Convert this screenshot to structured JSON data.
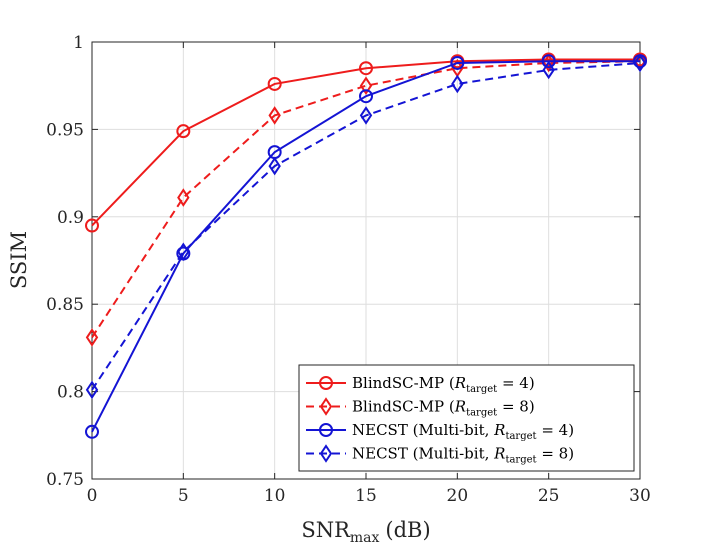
{
  "chart_data": {
    "type": "line",
    "title": "",
    "xlabel": "SNR",
    "xlabel_sub": "max",
    "xlabel_suffix": "(dB)",
    "ylabel": "SSIM",
    "xlim": [
      0,
      30
    ],
    "ylim": [
      0.75,
      1
    ],
    "xticks": [
      0,
      5,
      10,
      15,
      20,
      25,
      30
    ],
    "yticks": [
      0.75,
      0.8,
      0.85,
      0.9,
      0.95,
      1
    ],
    "ytick_labels": [
      "0.75",
      "0.8",
      "0.85",
      "0.9",
      "0.95",
      "1"
    ],
    "grid": true,
    "legend_position": "bottom-right",
    "x": [
      0,
      5,
      10,
      15,
      20,
      25,
      30
    ],
    "series": [
      {
        "name": "BlindSC-MP",
        "r_value": "4",
        "prefix": "BlindSC-MP (",
        "color": "#ee1c1c",
        "dash": "solid",
        "marker": "circle",
        "values": [
          0.895,
          0.949,
          0.976,
          0.985,
          0.989,
          0.99,
          0.99
        ]
      },
      {
        "name": "BlindSC-MP",
        "r_value": "8",
        "prefix": "BlindSC-MP (",
        "color": "#ee1c1c",
        "dash": "dashed",
        "marker": "diamond",
        "values": [
          0.831,
          0.911,
          0.958,
          0.975,
          0.985,
          0.988,
          0.989
        ]
      },
      {
        "name": "NECST (Multi-bit)",
        "r_value": "4",
        "prefix": "NECST (Multi-bit, ",
        "color": "#1414d4",
        "dash": "solid",
        "marker": "circle",
        "values": [
          0.777,
          0.879,
          0.937,
          0.969,
          0.988,
          0.989,
          0.989
        ]
      },
      {
        "name": "NECST (Multi-bit)",
        "r_value": "8",
        "prefix": "NECST (Multi-bit, ",
        "color": "#1414d4",
        "dash": "dashed",
        "marker": "diamond",
        "values": [
          0.801,
          0.88,
          0.929,
          0.958,
          0.976,
          0.984,
          0.988
        ]
      }
    ],
    "legend_symbol": "R",
    "legend_sub": "target"
  }
}
